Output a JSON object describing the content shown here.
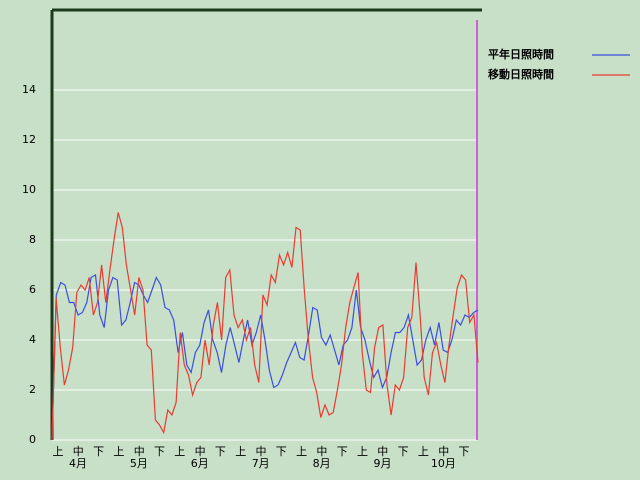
{
  "chart_data": {
    "type": "line",
    "series": [
      {
        "name": "平年日照時間",
        "color": "#3c4ee0",
        "values": [
          0,
          5.8,
          6.3,
          6.2,
          5.5,
          5.5,
          5.0,
          5.1,
          5.5,
          6.5,
          6.6,
          5.0,
          4.5,
          6.0,
          6.5,
          6.4,
          4.6,
          4.8,
          5.5,
          6.3,
          6.2,
          5.8,
          5.5,
          6.0,
          6.5,
          6.2,
          5.3,
          5.2,
          4.8,
          3.5,
          4.3,
          3.0,
          2.7,
          3.5,
          3.8,
          4.7,
          5.2,
          4.0,
          3.5,
          2.7,
          3.8,
          4.5,
          3.8,
          3.1,
          4.0,
          4.8,
          3.8,
          4.3,
          5.0,
          4.0,
          2.8,
          2.1,
          2.2,
          2.6,
          3.1,
          3.5,
          3.9,
          3.3,
          3.2,
          4.2,
          5.3,
          5.2,
          4.1,
          3.8,
          4.2,
          3.6,
          3.0,
          3.8,
          4.0,
          4.5,
          6.0,
          4.5,
          4.0,
          3.2,
          2.5,
          2.8,
          2.1,
          2.5,
          3.5,
          4.3,
          4.3,
          4.5,
          5.0,
          4.0,
          3.0,
          3.2,
          4.0,
          4.5,
          3.8,
          4.7,
          3.6,
          3.5,
          4.0,
          4.8,
          4.6,
          5.0,
          4.9,
          5.1,
          5.2
        ]
      },
      {
        "name": "移動日照時間",
        "color": "#e83c30",
        "values": [
          0,
          5.7,
          3.7,
          2.2,
          2.8,
          3.7,
          5.9,
          6.2,
          6.0,
          6.5,
          5.0,
          5.5,
          7.0,
          5.5,
          6.8,
          8.0,
          9.1,
          8.5,
          7.0,
          6.0,
          5.0,
          6.5,
          6.0,
          3.8,
          3.6,
          0.8,
          0.6,
          0.3,
          1.2,
          1.0,
          1.5,
          4.3,
          3.0,
          2.6,
          1.8,
          2.3,
          2.5,
          4.0,
          3.0,
          4.6,
          5.5,
          4.0,
          6.5,
          6.8,
          5.0,
          4.5,
          4.8,
          4.0,
          4.5,
          3.0,
          2.3,
          5.8,
          5.4,
          6.6,
          6.3,
          7.4,
          7.0,
          7.5,
          6.9,
          8.5,
          8.4,
          6.0,
          4.0,
          2.5,
          1.9,
          0.9,
          1.4,
          1.0,
          1.1,
          2.0,
          3.0,
          4.5,
          5.5,
          6.1,
          6.7,
          3.5,
          2.0,
          1.9,
          3.7,
          4.5,
          4.6,
          2.2,
          1.0,
          2.2,
          2.0,
          2.5,
          4.5,
          4.9,
          7.1,
          5.0,
          2.5,
          1.8,
          3.5,
          3.9,
          3.0,
          2.3,
          3.8,
          5.0,
          6.1,
          6.6,
          6.4,
          4.7,
          5.0,
          3.1
        ]
      }
    ],
    "dekad_labels": [
      "上",
      "中",
      "下",
      "上",
      "中",
      "下",
      "上",
      "中",
      "下",
      "上",
      "中",
      "下",
      "上",
      "中",
      "下",
      "上",
      "中",
      "下",
      "上",
      "中",
      "下"
    ],
    "months": [
      "4月",
      "5月",
      "6月",
      "7月",
      "8月",
      "9月",
      "10月"
    ],
    "ylim": [
      0,
      17.2
    ],
    "yticks": [
      0,
      2,
      4,
      6,
      8,
      10,
      12,
      14
    ],
    "grid": true
  }
}
